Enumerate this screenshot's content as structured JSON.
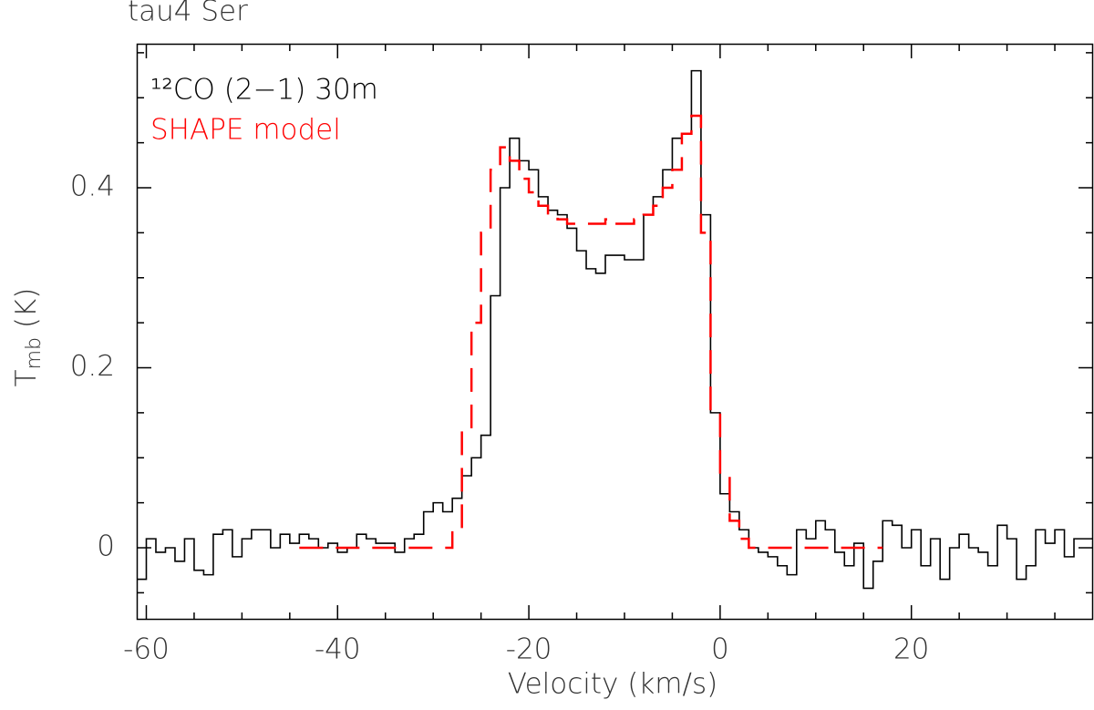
{
  "chart_data": {
    "type": "step",
    "title": "tau4 Ser",
    "xlabel": "Velocity (km/s)",
    "ylabel": [
      "T",
      "mb",
      " (K)"
    ],
    "xlim": [
      -61,
      39
    ],
    "ylim": [
      -0.08,
      0.56
    ],
    "xticks": [
      -60,
      -40,
      -20,
      0,
      20
    ],
    "yticks": [
      0,
      0.2,
      0.4
    ],
    "xminorticks": [
      -55,
      -50,
      -45,
      -35,
      -30,
      -25,
      -15,
      -10,
      -5,
      5,
      10,
      15,
      25,
      30,
      35
    ],
    "yminorticks": [
      -0.05,
      0.05,
      0.1,
      0.15,
      0.25,
      0.3,
      0.35,
      0.45,
      0.5,
      0.55
    ],
    "legend": "upper left",
    "series": [
      {
        "name": "¹²CO (2−1) 30m",
        "color": "#000000",
        "dashed": false,
        "x": [
          -60.5,
          -59.5,
          -58.5,
          -57.5,
          -56.5,
          -55.5,
          -54.5,
          -53.5,
          -52.5,
          -51.5,
          -50.5,
          -49.5,
          -48.5,
          -47.5,
          -46.5,
          -45.5,
          -44.5,
          -43.5,
          -42.5,
          -41.5,
          -40.5,
          -39.5,
          -38.5,
          -37.5,
          -36.5,
          -35.5,
          -34.5,
          -33.5,
          -32.5,
          -31.5,
          -30.5,
          -29.5,
          -28.5,
          -27.5,
          -26.5,
          -25.5,
          -24.5,
          -23.5,
          -22.5,
          -21.5,
          -20.5,
          -19.5,
          -18.5,
          -17.5,
          -16.5,
          -15.5,
          -14.5,
          -13.5,
          -12.5,
          -11.5,
          -10.5,
          -9.5,
          -8.5,
          -7.5,
          -6.5,
          -5.5,
          -4.5,
          -3.5,
          -2.5,
          -1.5,
          -0.5,
          0.5,
          1.5,
          2.5,
          3.5,
          4.5,
          5.5,
          6.5,
          7.5,
          8.5,
          9.5,
          10.5,
          11.5,
          12.5,
          13.5,
          14.5,
          15.5,
          16.5,
          17.5,
          18.5,
          19.5,
          20.5,
          21.5,
          22.5,
          23.5,
          24.5,
          25.5,
          26.5,
          27.5,
          28.5,
          29.5,
          30.5,
          31.5,
          32.5,
          33.5,
          34.5,
          35.5,
          36.5,
          37.5,
          38.5
        ],
        "values": [
          -0.035,
          0.01,
          -0.005,
          0,
          -0.015,
          0.01,
          -0.025,
          -0.03,
          0.015,
          0.02,
          -0.01,
          0.01,
          0.02,
          0.02,
          0,
          0.015,
          0.005,
          0.015,
          0.01,
          0,
          0.005,
          -0.005,
          0,
          0.015,
          0.01,
          0.005,
          0.005,
          -0.005,
          0.01,
          0.015,
          0.04,
          0.05,
          0.04,
          0.055,
          0.08,
          0.1,
          0.125,
          0.28,
          0.4,
          0.455,
          0.43,
          0.42,
          0.39,
          0.375,
          0.37,
          0.355,
          0.33,
          0.31,
          0.305,
          0.325,
          0.325,
          0.32,
          0.32,
          0.37,
          0.39,
          0.42,
          0.455,
          0.46,
          0.53,
          0.37,
          0.15,
          0.06,
          0.04,
          0.02,
          0,
          -0.005,
          -0.01,
          -0.02,
          -0.03,
          0.02,
          0.01,
          0.03,
          0.02,
          -0.005,
          -0.02,
          0.005,
          -0.045,
          -0.015,
          0.03,
          0.025,
          0,
          0.02,
          -0.02,
          0.01,
          -0.035,
          0,
          0.015,
          0,
          -0.005,
          -0.02,
          0.025,
          0.01,
          -0.035,
          -0.02,
          0.02,
          0.005,
          0.02,
          -0.01,
          0.01,
          0.01
        ]
      },
      {
        "name": "SHAPE model",
        "color": "#ff0000",
        "dashed": true,
        "x": [
          -43.5,
          -42.5,
          -41.5,
          -40.5,
          -39.5,
          -38.5,
          -37.5,
          -36.5,
          -35.5,
          -34.5,
          -33.5,
          -32.5,
          -31.5,
          -30.5,
          -29.5,
          -28.5,
          -27.5,
          -26.5,
          -25.5,
          -24.5,
          -23.5,
          -22.5,
          -21.5,
          -20.5,
          -19.5,
          -18.5,
          -17.5,
          -16.5,
          -15.5,
          -14.5,
          -13.5,
          -12.5,
          -11.5,
          -10.5,
          -9.5,
          -8.5,
          -7.5,
          -6.5,
          -5.5,
          -4.5,
          -3.5,
          -2.5,
          -1.5,
          -0.5,
          0.5,
          1.5,
          2.5,
          3.5,
          4.5,
          5.5,
          6.5,
          7.5,
          8.5,
          9.5,
          10.5,
          11.5,
          12.5,
          13.5,
          14.5,
          15.5,
          16.5
        ],
        "values": [
          0,
          0,
          0,
          0,
          0,
          0,
          0,
          0,
          0,
          0,
          0,
          0,
          0,
          0,
          0,
          0,
          0.02,
          0.13,
          0.25,
          0.35,
          0.42,
          0.445,
          0.43,
          0.41,
          0.395,
          0.38,
          0.37,
          0.365,
          0.36,
          0.36,
          0.36,
          0.36,
          0.365,
          0.36,
          0.36,
          0.365,
          0.37,
          0.38,
          0.4,
          0.42,
          0.46,
          0.48,
          0.35,
          0.15,
          0.08,
          0.03,
          0.01,
          0,
          0,
          0,
          0,
          0,
          0,
          0,
          0,
          0,
          0,
          0,
          0,
          0,
          0
        ]
      }
    ]
  }
}
